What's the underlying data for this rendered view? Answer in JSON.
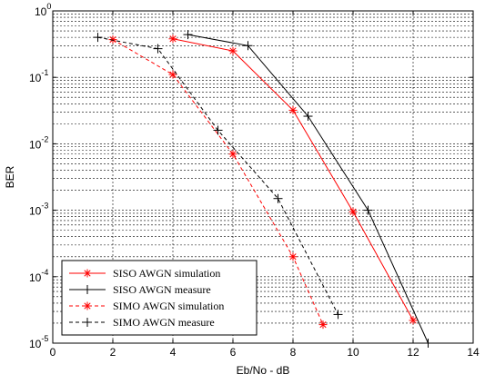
{
  "chart_data": {
    "type": "line",
    "xlabel": "Eb/No - dB",
    "ylabel": "BER",
    "xlim": [
      0,
      14
    ],
    "ylim": [
      1e-05,
      1
    ],
    "yscale": "log",
    "grid": true,
    "legend_position": "bottom-left",
    "x_ticks": [
      "0",
      "2",
      "4",
      "6",
      "8",
      "10",
      "12",
      "14"
    ],
    "y_ticks": [
      {
        "base": "10",
        "exp": "0"
      },
      {
        "base": "10",
        "exp": "-1"
      },
      {
        "base": "10",
        "exp": "-2"
      },
      {
        "base": "10",
        "exp": "-3"
      },
      {
        "base": "10",
        "exp": "-4"
      },
      {
        "base": "10",
        "exp": "-5"
      }
    ],
    "series": [
      {
        "name": "SISO AWGN simulation",
        "color": "#ff0000",
        "line_style": "solid",
        "marker": "star",
        "x": [
          4,
          6,
          8,
          10,
          12
        ],
        "y": [
          0.38,
          0.25,
          0.032,
          0.00095,
          2.2e-05
        ]
      },
      {
        "name": "SISO AWGN measure",
        "color": "#000000",
        "line_style": "solid",
        "marker": "plus",
        "x": [
          4.5,
          6.5,
          8.5,
          10.5,
          12.5
        ],
        "y": [
          0.44,
          0.3,
          0.026,
          0.001,
          1e-05
        ]
      },
      {
        "name": "SIMO AWGN simulation",
        "color": "#ff0000",
        "line_style": "dashed",
        "marker": "star",
        "x": [
          2,
          4,
          6,
          8,
          9
        ],
        "y": [
          0.37,
          0.11,
          0.007,
          0.0002,
          1.9e-05
        ]
      },
      {
        "name": "SIMO AWGN measure",
        "color": "#000000",
        "line_style": "dashed",
        "marker": "plus",
        "x": [
          1.5,
          3.5,
          5.5,
          7.5,
          9.5
        ],
        "y": [
          0.4,
          0.27,
          0.016,
          0.0015,
          2.7e-05
        ]
      }
    ]
  }
}
